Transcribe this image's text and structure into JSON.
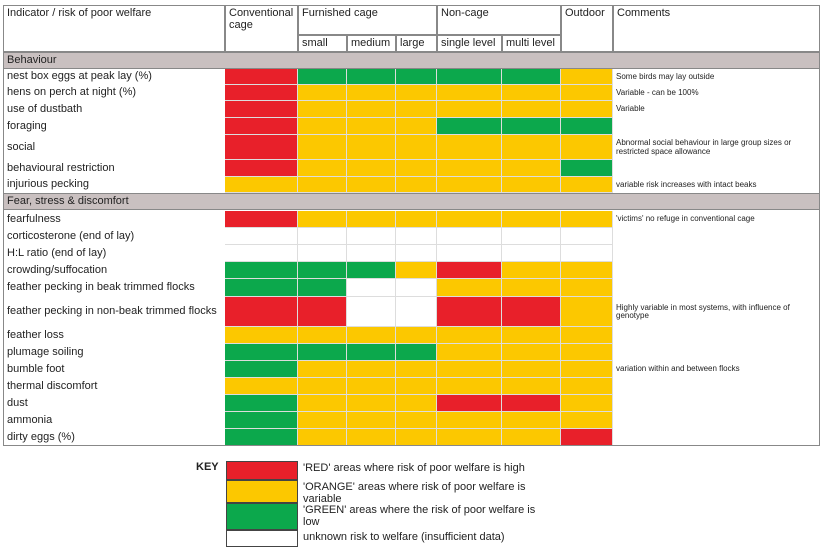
{
  "header": {
    "columns": [
      "Indicator / risk of poor welfare",
      "Conventional cage",
      "Furnished cage",
      "Non-cage",
      "Outdoor",
      "Comments"
    ],
    "subcolumns": [
      "small",
      "medium",
      "large",
      "single level",
      "multi level"
    ]
  },
  "sections": [
    {
      "title": "Behaviour",
      "rows": [
        {
          "label": "nest box eggs at peak lay (%)",
          "cells": [
            "#e8202a",
            "#0ca84c",
            "#0ca84c",
            "#0ca84c",
            "#0ca84c",
            "#0ca84c",
            "#fcc800"
          ],
          "comment": "Some birds may lay outside"
        },
        {
          "label": "hens on perch at night (%)",
          "cells": [
            "#e8202a",
            "#fcc800",
            "#fcc800",
            "#fcc800",
            "#fcc800",
            "#fcc800",
            "#fcc800"
          ],
          "comment": "Variable - can be 100%"
        },
        {
          "label": "use of dustbath",
          "cells": [
            "#e8202a",
            "#fcc800",
            "#fcc800",
            "#fcc800",
            "#fcc800",
            "#fcc800",
            "#fcc800"
          ],
          "comment": "Variable"
        },
        {
          "label": "foraging",
          "cells": [
            "#e8202a",
            "#fcc800",
            "#fcc800",
            "#fcc800",
            "#0ca84c",
            "#0ca84c",
            "#0ca84c"
          ]
        },
        {
          "label": "social",
          "cells": [
            "#e8202a",
            "#fcc800",
            "#fcc800",
            "#fcc800",
            "#fcc800",
            "#fcc800",
            "#fcc800"
          ],
          "comment": "Abnormal social behaviour in large group sizes or restricted space allowance"
        },
        {
          "label": "behavioural restriction",
          "cells": [
            "#e8202a",
            "#fcc800",
            "#fcc800",
            "#fcc800",
            "#fcc800",
            "#fcc800",
            "#0ca84c"
          ]
        },
        {
          "label": "injurious pecking",
          "cells": [
            "#fcc800",
            "#fcc800",
            "#fcc800",
            "#fcc800",
            "#fcc800",
            "#fcc800",
            "#fcc800"
          ],
          "comment": "variable risk increases with intact beaks"
        }
      ]
    },
    {
      "title": "Fear, stress & discomfort",
      "rows": [
        {
          "label": "fearfulness",
          "cells": [
            "#e8202a",
            "#fcc800",
            "#fcc800",
            "#fcc800",
            "#fcc800",
            "#fcc800",
            "#fcc800"
          ],
          "comment": "'victims' no refuge in conventional cage"
        },
        {
          "label": "corticosterone (end of lay)",
          "cells": [
            "#ffffff",
            "#ffffff",
            "#ffffff",
            "#ffffff",
            "#ffffff",
            "#ffffff",
            "#ffffff"
          ]
        },
        {
          "label": "H:L ratio (end of lay)",
          "cells": [
            "#ffffff",
            "#ffffff",
            "#ffffff",
            "#ffffff",
            "#ffffff",
            "#ffffff",
            "#ffffff"
          ]
        },
        {
          "label": "crowding/suffocation",
          "cells": [
            "#0ca84c",
            "#0ca84c",
            "#0ca84c",
            "#fcc800",
            "#e8202a",
            "#fcc800",
            "#fcc800"
          ]
        },
        {
          "label": "feather pecking in beak trimmed flocks",
          "cells": [
            "#0ca84c",
            "#0ca84c",
            "#ffffff",
            "#ffffff",
            "#fcc800",
            "#fcc800",
            "#fcc800"
          ]
        },
        {
          "label": "feather pecking in non-beak trimmed flocks",
          "cells": [
            "#e8202a",
            "#e8202a",
            "#ffffff",
            "#ffffff",
            "#e8202a",
            "#e8202a",
            "#fcc800"
          ],
          "comment": "Highly variable in most systems, with influence of genotype"
        },
        {
          "label": "feather loss",
          "cells": [
            "#fcc800",
            "#fcc800",
            "#fcc800",
            "#fcc800",
            "#fcc800",
            "#fcc800",
            "#fcc800"
          ]
        },
        {
          "label": "plumage soiling",
          "cells": [
            "#0ca84c",
            "#0ca84c",
            "#0ca84c",
            "#0ca84c",
            "#fcc800",
            "#fcc800",
            "#fcc800"
          ]
        },
        {
          "label": "bumble foot",
          "cells": [
            "#0ca84c",
            "#fcc800",
            "#fcc800",
            "#fcc800",
            "#fcc800",
            "#fcc800",
            "#fcc800"
          ],
          "comment": "variation within and between flocks"
        },
        {
          "label": "thermal discomfort",
          "cells": [
            "#fcc800",
            "#fcc800",
            "#fcc800",
            "#fcc800",
            "#fcc800",
            "#fcc800",
            "#fcc800"
          ]
        },
        {
          "label": "dust",
          "cells": [
            "#0ca84c",
            "#fcc800",
            "#fcc800",
            "#fcc800",
            "#e8202a",
            "#e8202a",
            "#fcc800"
          ]
        },
        {
          "label": "ammonia",
          "cells": [
            "#0ca84c",
            "#fcc800",
            "#fcc800",
            "#fcc800",
            "#fcc800",
            "#fcc800",
            "#fcc800"
          ]
        },
        {
          "label": "dirty eggs (%)",
          "cells": [
            "#0ca84c",
            "#fcc800",
            "#fcc800",
            "#fcc800",
            "#fcc800",
            "#fcc800",
            "#e8202a"
          ]
        }
      ]
    }
  ],
  "key": {
    "title": "KEY",
    "items": [
      {
        "color": "#e8202a",
        "text": "'RED' areas where risk of poor welfare is high"
      },
      {
        "color": "#fcc800",
        "text": "'ORANGE' areas where risk of poor welfare is variable"
      },
      {
        "color": "#0ca84c",
        "text": "'GREEN' areas where the risk of poor welfare is low"
      },
      {
        "color": "#ffffff",
        "text": "unknown risk to welfare (insufficient data)"
      }
    ]
  }
}
